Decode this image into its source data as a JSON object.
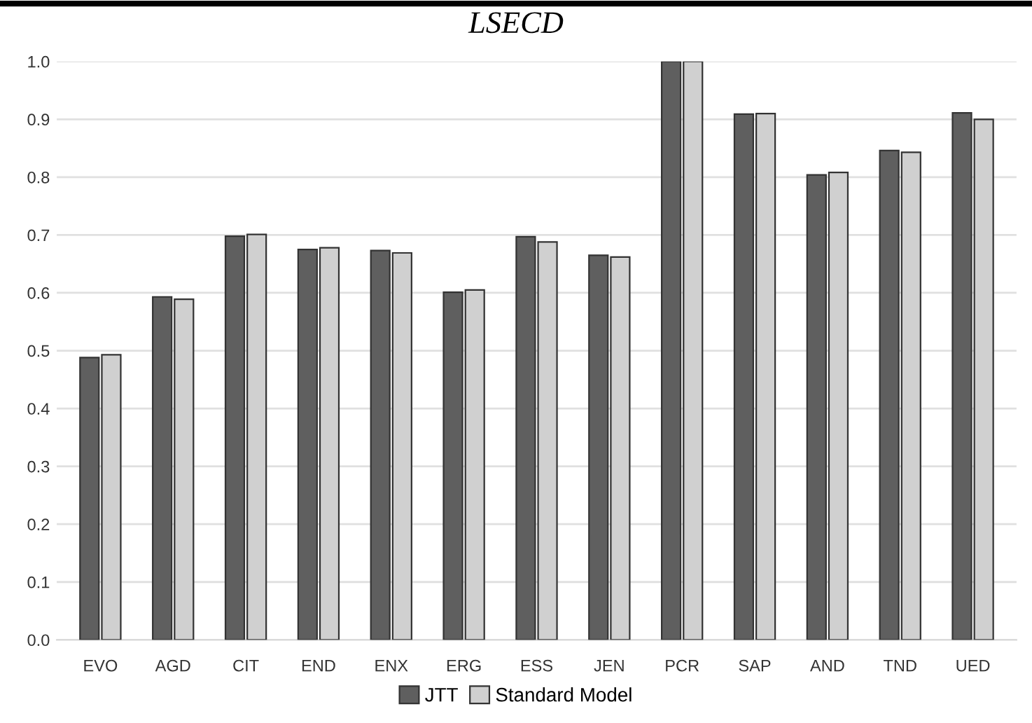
{
  "chart_data": {
    "type": "bar",
    "title": "LSECD",
    "categories": [
      "EVO",
      "AGD",
      "CIT",
      "END",
      "ENX",
      "ERG",
      "ESS",
      "JEN",
      "PCR",
      "SAP",
      "AND",
      "TND",
      "UED"
    ],
    "series": [
      {
        "name": "JTT",
        "color": "#5f5f5f",
        "values": [
          0.488,
          0.593,
          0.698,
          0.675,
          0.673,
          0.601,
          0.697,
          0.665,
          1.0,
          0.909,
          0.804,
          0.846,
          0.911
        ]
      },
      {
        "name": "Standard Model",
        "color": "#d0d0d0",
        "values": [
          0.493,
          0.589,
          0.701,
          0.678,
          0.669,
          0.605,
          0.688,
          0.662,
          1.0,
          0.91,
          0.808,
          0.843,
          0.9
        ]
      }
    ],
    "ylim": [
      0,
      1.0
    ],
    "yticks": [
      {
        "value": 0,
        "label": "0.0"
      },
      {
        "value": 0.1,
        "label": "0.1"
      },
      {
        "value": 0.2,
        "label": "0.2"
      },
      {
        "value": 0.3,
        "label": "0.3"
      },
      {
        "value": 0.4,
        "label": "0.4"
      },
      {
        "value": 0.5,
        "label": "0.5"
      },
      {
        "value": 0.6,
        "label": "0.6"
      },
      {
        "value": 0.7,
        "label": "0.7"
      },
      {
        "value": 0.8,
        "label": "0.8"
      },
      {
        "value": 0.9,
        "label": "0.9"
      },
      {
        "value": 1.0,
        "label": "1.0"
      }
    ],
    "grid": "y",
    "legend": "bottom"
  }
}
